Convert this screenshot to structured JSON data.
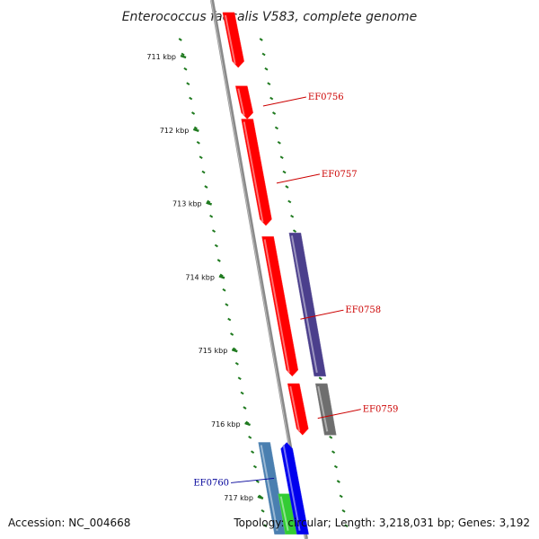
{
  "title": "Enterococcus faecalis V583, complete genome",
  "accession": "Accession: NC_004668",
  "topology": "Topology: circular; Length: 3,218,031 bp; Genes: 3,192",
  "colors": {
    "backbone": "#8a8a8a",
    "tick": "#1f7a1f",
    "red_gene": "#ff0000",
    "purple_gene": "#4b3f8c",
    "gray_gene": "#6e6e6e",
    "steel_gene": "#4a7fb0",
    "blue_gene": "#0000ee",
    "green_gene": "#33cc33",
    "label_red": "#cc0000",
    "label_blue": "#000099"
  },
  "ticks": [
    {
      "kbp": 711,
      "label": "711 kbp"
    },
    {
      "kbp": 712,
      "label": "712 kbp"
    },
    {
      "kbp": 713,
      "label": "713 kbp"
    },
    {
      "kbp": 714,
      "label": "714 kbp"
    },
    {
      "kbp": 715,
      "label": "715 kbp"
    },
    {
      "kbp": 716,
      "label": "716 kbp"
    },
    {
      "kbp": 717,
      "label": "717 kbp"
    }
  ],
  "genes": [
    {
      "start": 710.4,
      "end": 711.15,
      "track": "inner",
      "color": "red_gene",
      "arrow": "end",
      "label": ""
    },
    {
      "start": 711.4,
      "end": 711.85,
      "track": "inner",
      "color": "red_gene",
      "arrow": "end",
      "label": "EF0756"
    },
    {
      "start": 711.85,
      "end": 713.3,
      "track": "inner",
      "color": "red_gene",
      "arrow": "end",
      "label": "EF0757"
    },
    {
      "start": 713.45,
      "end": 715.35,
      "track": "inner",
      "color": "red_gene",
      "arrow": "end",
      "label": ""
    },
    {
      "start": 713.4,
      "end": 715.35,
      "track": "outer",
      "color": "purple_gene",
      "arrow": "none",
      "label": "EF0758"
    },
    {
      "start": 715.45,
      "end": 716.15,
      "track": "inner",
      "color": "red_gene",
      "arrow": "end",
      "label": ""
    },
    {
      "start": 715.45,
      "end": 716.15,
      "track": "outer",
      "color": "gray_gene",
      "arrow": "none",
      "label": "EF0759"
    },
    {
      "start": 716.25,
      "end": 717.5,
      "track": "left",
      "color": "steel_gene",
      "arrow": "none",
      "label": "EF0760"
    },
    {
      "start": 716.95,
      "end": 717.5,
      "track": "left-inner",
      "color": "green_gene",
      "arrow": "none",
      "label": ""
    },
    {
      "start": 716.25,
      "end": 717.5,
      "track": "inner-left",
      "color": "blue_gene",
      "arrow": "start",
      "label": ""
    }
  ],
  "labels": [
    {
      "text": "EF0756",
      "color": "label_red",
      "anchor_kbp": 711.55,
      "side": "right"
    },
    {
      "text": "EF0757",
      "color": "label_red",
      "anchor_kbp": 712.6,
      "side": "right"
    },
    {
      "text": "EF0758",
      "color": "label_red",
      "anchor_kbp": 714.45,
      "side": "right"
    },
    {
      "text": "EF0759",
      "color": "label_red",
      "anchor_kbp": 715.8,
      "side": "right"
    },
    {
      "text": "EF0760",
      "color": "label_blue",
      "anchor_kbp": 716.8,
      "side": "left"
    }
  ]
}
